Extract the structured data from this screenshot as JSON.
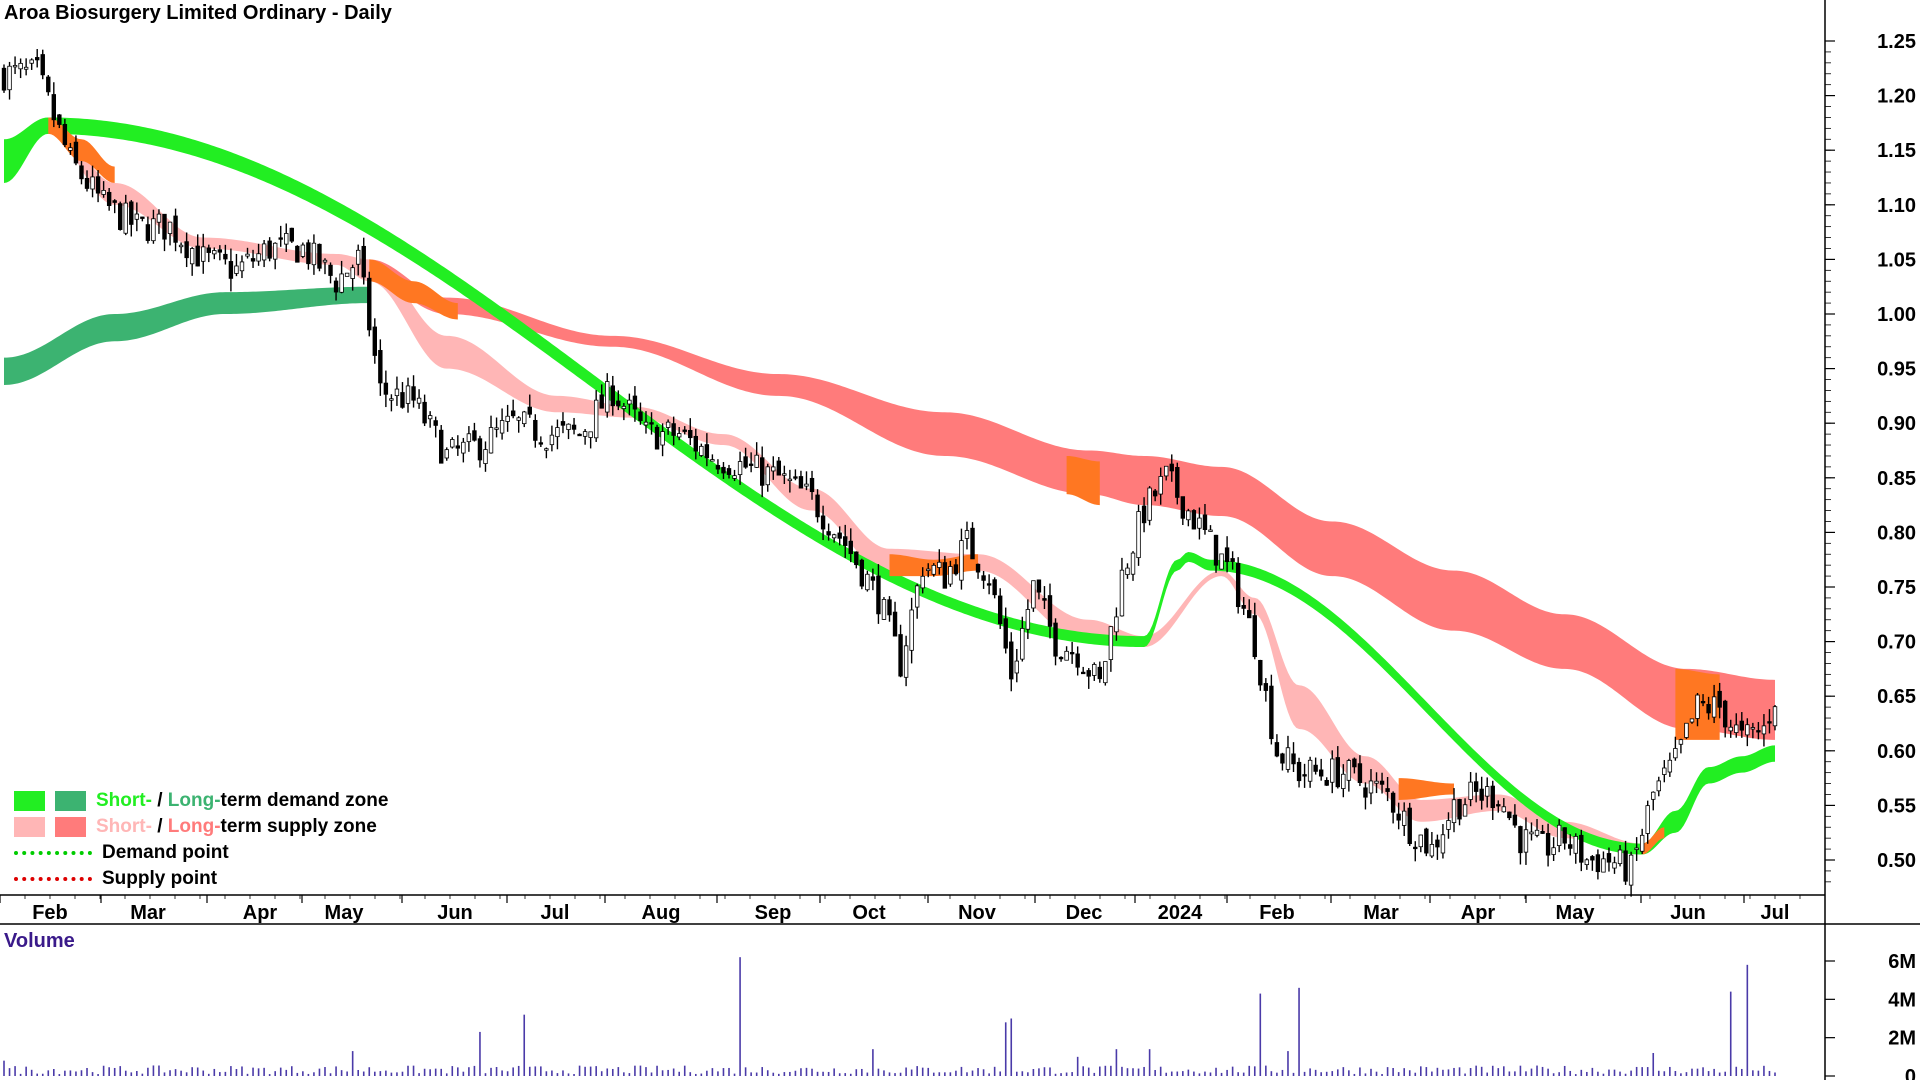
{
  "title": "Aroa Biosurgery Limited Ordinary - Daily",
  "volume_label": "Volume",
  "legend": {
    "row1": {
      "a": "Short-",
      "sep": " / ",
      "b": "Long-",
      "rest": "term demand zone"
    },
    "row2": {
      "a": "Short-",
      "sep": " / ",
      "b": "Long-",
      "rest": "term supply zone"
    },
    "row3": "Demand point",
    "row4": "Supply point"
  },
  "colors": {
    "short_demand": "#22ee22",
    "long_demand": "#3cb371",
    "short_supply": "#ffb6b6",
    "long_supply": "#ff7b7b",
    "overlap": "#ff7722",
    "demand_point": "#00cc00",
    "supply_point": "#dd0000",
    "volume": "#4a3aa8"
  },
  "chart_data": [
    {
      "type": "candlestick",
      "title": "Aroa Biosurgery Limited Ordinary - Daily",
      "ylim": [
        0.465,
        1.265
      ],
      "y_ticks": [
        "1.25",
        "1.20",
        "1.15",
        "1.10",
        "1.05",
        "1.00",
        "0.95",
        "0.90",
        "0.85",
        "0.80",
        "0.75",
        "0.70",
        "0.65",
        "0.60",
        "0.55",
        "0.50"
      ],
      "x_ticks": [
        "Feb",
        "Mar",
        "Apr",
        "May",
        "Jun",
        "Jul",
        "Aug",
        "Sep",
        "Oct",
        "Nov",
        "Dec",
        "2024",
        "Feb",
        "Mar",
        "Apr",
        "May",
        "Jun",
        "Jul"
      ],
      "close_path": [
        [
          0,
          1.22
        ],
        [
          6,
          1.22
        ],
        [
          12,
          1.14
        ],
        [
          18,
          1.1
        ],
        [
          24,
          1.08
        ],
        [
          30,
          1.08
        ],
        [
          36,
          1.05
        ],
        [
          42,
          1.04
        ],
        [
          48,
          1.06
        ],
        [
          54,
          1.06
        ],
        [
          60,
          1.03
        ],
        [
          64,
          1.05
        ],
        [
          68,
          0.93
        ],
        [
          74,
          0.92
        ],
        [
          80,
          0.87
        ],
        [
          86,
          0.88
        ],
        [
          92,
          0.9
        ],
        [
          98,
          0.89
        ],
        [
          104,
          0.89
        ],
        [
          110,
          0.93
        ],
        [
          116,
          0.89
        ],
        [
          122,
          0.89
        ],
        [
          128,
          0.87
        ],
        [
          134,
          0.86
        ],
        [
          140,
          0.85
        ],
        [
          146,
          0.83
        ],
        [
          152,
          0.79
        ],
        [
          158,
          0.74
        ],
        [
          162,
          0.68
        ],
        [
          166,
          0.77
        ],
        [
          170,
          0.76
        ],
        [
          174,
          0.79
        ],
        [
          178,
          0.76
        ],
        [
          182,
          0.67
        ],
        [
          186,
          0.75
        ],
        [
          190,
          0.7
        ],
        [
          194,
          0.69
        ],
        [
          198,
          0.66
        ],
        [
          202,
          0.76
        ],
        [
          206,
          0.82
        ],
        [
          210,
          0.85
        ],
        [
          214,
          0.82
        ],
        [
          218,
          0.79
        ],
        [
          222,
          0.76
        ],
        [
          226,
          0.7
        ],
        [
          230,
          0.6
        ],
        [
          234,
          0.58
        ],
        [
          238,
          0.58
        ],
        [
          242,
          0.58
        ],
        [
          246,
          0.57
        ],
        [
          250,
          0.56
        ],
        [
          254,
          0.53
        ],
        [
          258,
          0.51
        ],
        [
          262,
          0.55
        ],
        [
          266,
          0.56
        ],
        [
          270,
          0.56
        ],
        [
          274,
          0.52
        ],
        [
          278,
          0.51
        ],
        [
          282,
          0.52
        ],
        [
          286,
          0.5
        ],
        [
          290,
          0.5
        ],
        [
          294,
          0.49
        ],
        [
          298,
          0.56
        ],
        [
          302,
          0.59
        ],
        [
          306,
          0.64
        ],
        [
          310,
          0.64
        ],
        [
          314,
          0.61
        ],
        [
          318,
          0.62
        ],
        [
          320,
          0.65
        ]
      ],
      "demand_short": [
        [
          0,
          1.12,
          1.16
        ],
        [
          8,
          1.165,
          1.18
        ],
        [
          206,
          0.695,
          0.705
        ],
        [
          212,
          0.765,
          0.775
        ],
        [
          214,
          0.773,
          0.782
        ],
        [
          218,
          0.765,
          0.775
        ],
        [
          296,
          0.505,
          0.515
        ],
        [
          302,
          0.525,
          0.545
        ],
        [
          308,
          0.57,
          0.585
        ],
        [
          314,
          0.58,
          0.595
        ],
        [
          320,
          0.59,
          0.605
        ]
      ],
      "demand_long": [
        [
          0,
          0.935,
          0.96
        ],
        [
          20,
          0.975,
          1.0
        ],
        [
          40,
          1.0,
          1.02
        ],
        [
          66,
          1.01,
          1.025
        ]
      ],
      "supply_short": [
        [
          8,
          1.165,
          1.18
        ],
        [
          20,
          1.1,
          1.12
        ],
        [
          36,
          1.06,
          1.07
        ],
        [
          60,
          1.045,
          1.055
        ],
        [
          66,
          1.03,
          1.05
        ],
        [
          80,
          0.95,
          0.98
        ],
        [
          100,
          0.91,
          0.925
        ],
        [
          114,
          0.905,
          0.915
        ],
        [
          130,
          0.88,
          0.89
        ],
        [
          146,
          0.82,
          0.84
        ],
        [
          160,
          0.76,
          0.785
        ],
        [
          176,
          0.765,
          0.78
        ],
        [
          196,
          0.7,
          0.72
        ],
        [
          206,
          0.695,
          0.705
        ],
        [
          220,
          0.76,
          0.765
        ],
        [
          226,
          0.725,
          0.74
        ],
        [
          234,
          0.62,
          0.66
        ],
        [
          246,
          0.57,
          0.595
        ],
        [
          256,
          0.535,
          0.555
        ],
        [
          270,
          0.545,
          0.56
        ],
        [
          282,
          0.52,
          0.535
        ],
        [
          296,
          0.505,
          0.515
        ]
      ],
      "supply_long": [
        [
          66,
          1.03,
          1.05
        ],
        [
          80,
          1.0,
          1.015
        ],
        [
          110,
          0.97,
          0.98
        ],
        [
          140,
          0.925,
          0.945
        ],
        [
          170,
          0.87,
          0.91
        ],
        [
          196,
          0.835,
          0.875
        ],
        [
          206,
          0.825,
          0.87
        ],
        [
          220,
          0.815,
          0.86
        ],
        [
          240,
          0.76,
          0.81
        ],
        [
          262,
          0.71,
          0.765
        ],
        [
          282,
          0.675,
          0.725
        ],
        [
          304,
          0.62,
          0.675
        ],
        [
          320,
          0.61,
          0.665
        ]
      ]
    },
    {
      "type": "bar",
      "title": "Volume",
      "ylim": [
        0,
        7000000
      ],
      "y_ticks": [
        "6M",
        "4M",
        "2M",
        "0"
      ],
      "spikes": [
        [
          0,
          0.8
        ],
        [
          63,
          1.3
        ],
        [
          86,
          2.3
        ],
        [
          94,
          3.2
        ],
        [
          133,
          6.2
        ],
        [
          157,
          1.4
        ],
        [
          181,
          2.8
        ],
        [
          182,
          3.0
        ],
        [
          194,
          1.0
        ],
        [
          201,
          1.4
        ],
        [
          207,
          1.4
        ],
        [
          227,
          4.3
        ],
        [
          232,
          1.3
        ],
        [
          234,
          4.6
        ],
        [
          298,
          1.2
        ],
        [
          312,
          4.4
        ],
        [
          315,
          5.8
        ]
      ]
    }
  ]
}
